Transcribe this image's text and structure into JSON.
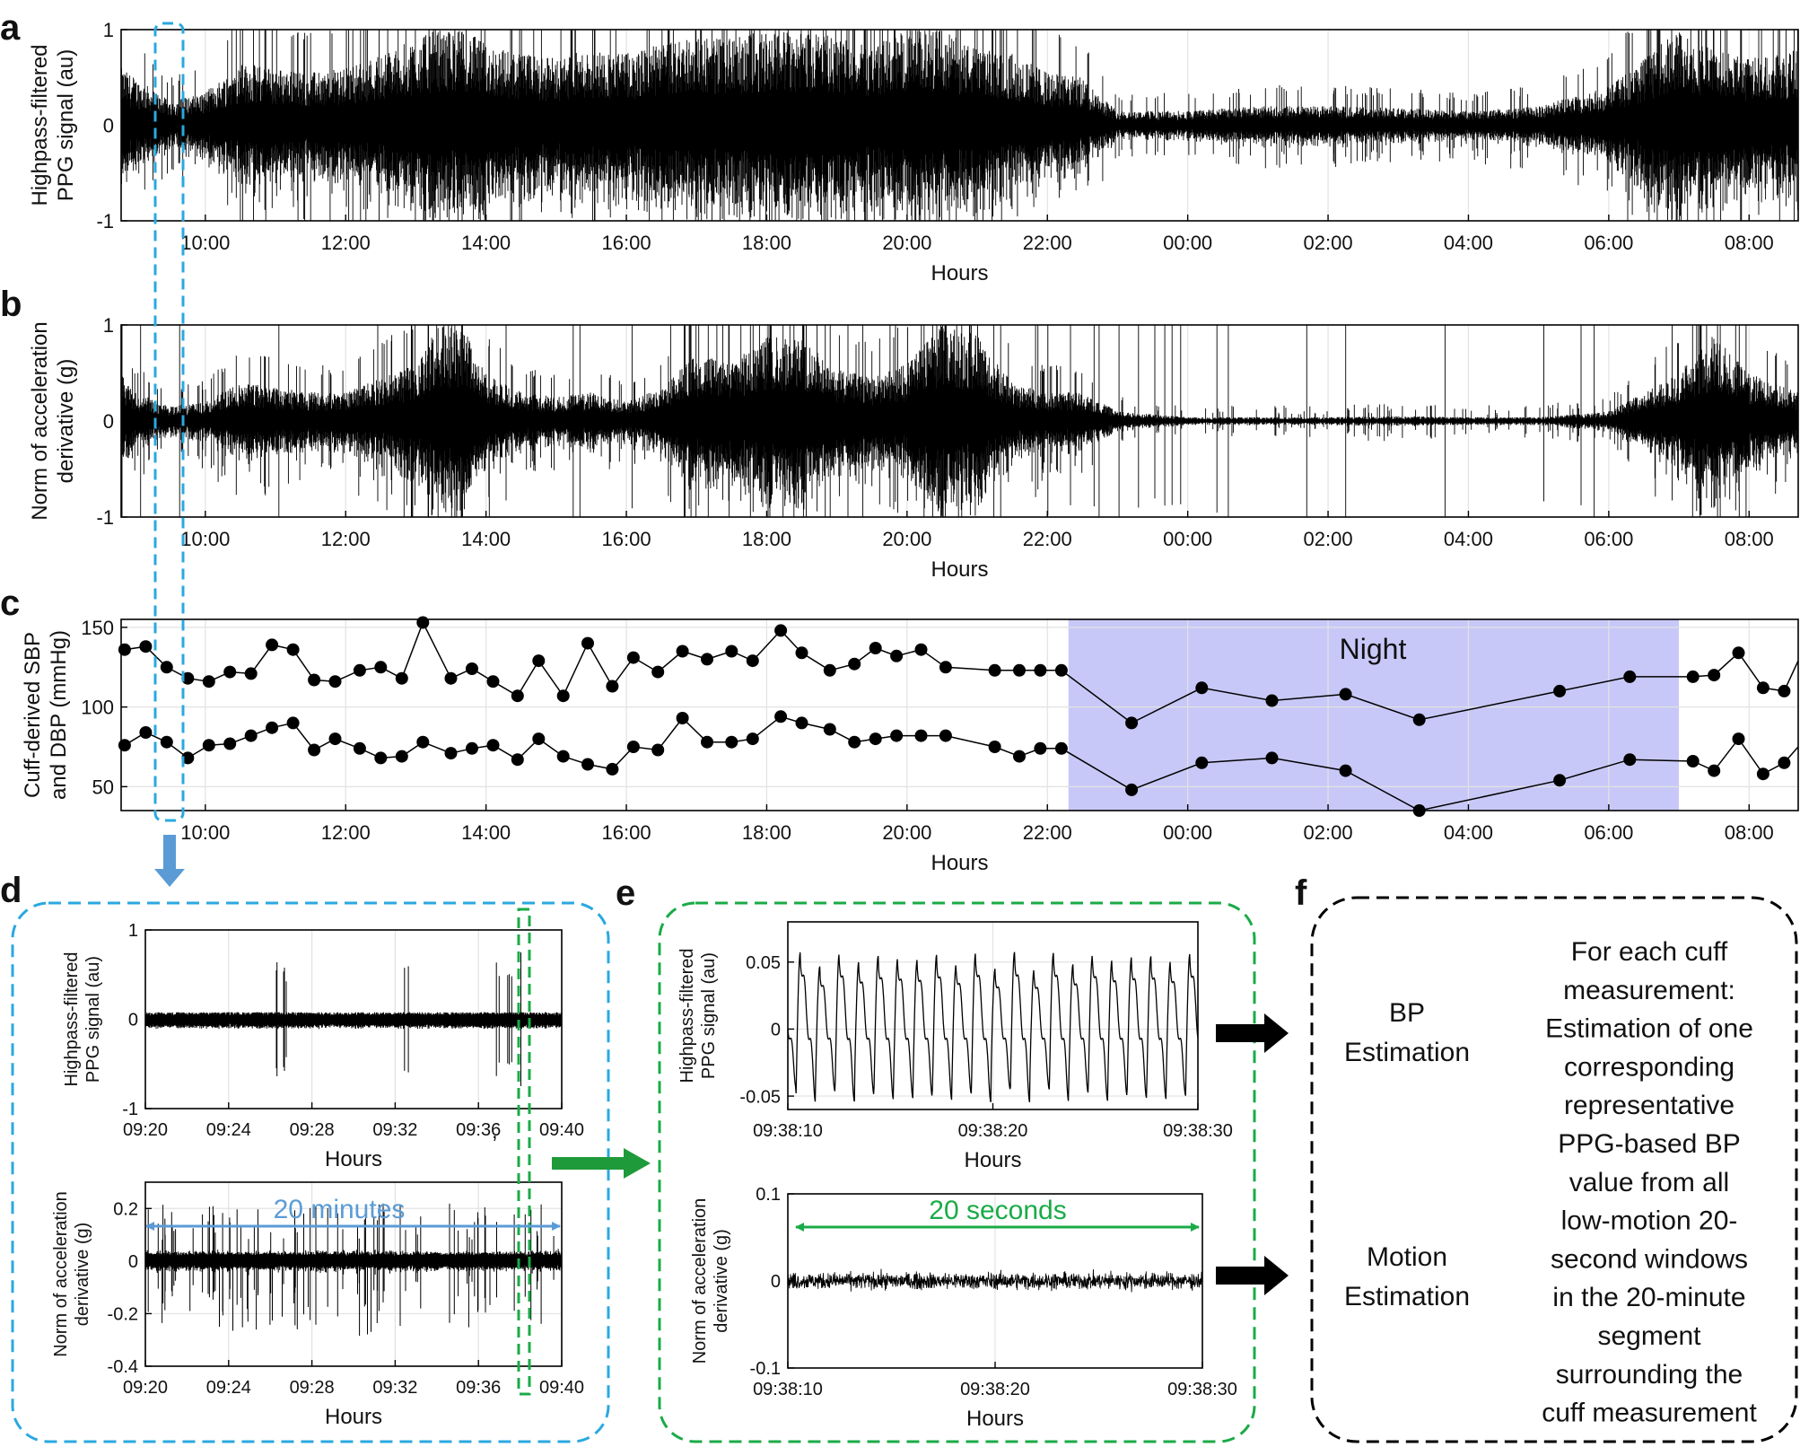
{
  "figure": {
    "panel_labels": [
      "a",
      "b",
      "c",
      "d",
      "e",
      "f"
    ],
    "night_label": "Night",
    "twenty_minutes": "20 minutes",
    "twenty_seconds": "20 seconds",
    "stray_comma": ",",
    "f_left_top": [
      "BP",
      "Estimation"
    ],
    "f_left_bottom": [
      "Motion",
      "Estimation"
    ],
    "f_right": [
      "For each cuff",
      "measurement:",
      "Estimation of one",
      "corresponding",
      "representative",
      "PPG-based BP",
      "value from all",
      "low-motion 20-",
      "second windows",
      "in the 20-minute",
      "segment",
      "surrounding the",
      "cuff measurement"
    ],
    "colors": {
      "blue_dash": "#2aa8e0",
      "green_dash": "#1aab47",
      "blue_arrow": "#5b9bd5",
      "green_arrow": "#1f9a3a",
      "night_fill": "#c8c8f8",
      "trace": "#000000"
    }
  },
  "chart_data": [
    {
      "id": "a",
      "type": "line",
      "title": "",
      "ylabel": [
        "Highpass-filtered",
        "PPG signal (au)"
      ],
      "xlabel": "Hours",
      "xlim_hours": [
        8.8,
        32.7
      ],
      "ylim": [
        -1,
        1
      ],
      "yticks": [
        -1,
        0,
        1
      ],
      "xtick_positions_hours": [
        10,
        12,
        14,
        16,
        18,
        20,
        22,
        24,
        26,
        28,
        30,
        32
      ],
      "xtick_labels": [
        "10:00",
        "12:00",
        "14:00",
        "16:00",
        "18:00",
        "20:00",
        "22:00",
        "00:00",
        "02:00",
        "04:00",
        "06:00",
        "08:00"
      ],
      "envelope_hours": [
        8.8,
        9.0,
        9.5,
        10.0,
        10.5,
        11.0,
        11.5,
        12.0,
        12.5,
        13.0,
        13.3,
        13.7,
        14.0,
        14.5,
        15.0,
        15.5,
        16.0,
        16.5,
        17.0,
        17.5,
        18.0,
        18.3,
        18.7,
        19.0,
        19.5,
        20.0,
        20.5,
        21.0,
        21.5,
        22.0,
        22.5,
        23.0,
        24.0,
        25.0,
        26.0,
        27.0,
        28.0,
        29.0,
        30.0,
        31.0,
        31.5,
        32.0,
        32.7
      ],
      "envelope_amplitude": [
        0.6,
        0.5,
        0.25,
        0.35,
        0.65,
        0.6,
        0.55,
        0.6,
        0.75,
        0.9,
        1.0,
        1.0,
        0.85,
        0.75,
        0.7,
        0.8,
        0.75,
        0.85,
        0.95,
        0.9,
        1.0,
        1.0,
        1.0,
        0.9,
        0.85,
        1.0,
        1.0,
        0.8,
        0.75,
        0.55,
        0.5,
        0.15,
        0.15,
        0.2,
        0.2,
        0.18,
        0.15,
        0.2,
        0.4,
        1.0,
        0.8,
        0.7,
        0.8
      ]
    },
    {
      "id": "b",
      "type": "line",
      "ylabel": [
        "Norm of acceleration",
        "derivative (g)"
      ],
      "xlabel": "Hours",
      "xlim_hours": [
        8.8,
        32.7
      ],
      "ylim": [
        -1,
        1
      ],
      "yticks": [
        -1,
        0,
        1
      ],
      "xtick_positions_hours": [
        10,
        12,
        14,
        16,
        18,
        20,
        22,
        24,
        26,
        28,
        30,
        32
      ],
      "xtick_labels": [
        "10:00",
        "12:00",
        "14:00",
        "16:00",
        "18:00",
        "20:00",
        "22:00",
        "00:00",
        "02:00",
        "04:00",
        "06:00",
        "08:00"
      ],
      "envelope_hours": [
        8.8,
        9.0,
        9.5,
        10.0,
        10.5,
        11.0,
        11.5,
        12.0,
        12.5,
        13.0,
        13.3,
        13.7,
        14.0,
        14.5,
        15.0,
        15.5,
        16.0,
        16.5,
        17.0,
        17.5,
        18.0,
        18.5,
        19.0,
        19.5,
        20.0,
        20.5,
        21.0,
        21.5,
        22.0,
        22.5,
        23.0,
        24.0,
        25.0,
        26.0,
        27.0,
        28.0,
        29.0,
        30.0,
        31.0,
        31.5,
        32.0,
        32.7
      ],
      "envelope_amplitude": [
        0.5,
        0.3,
        0.15,
        0.2,
        0.4,
        0.35,
        0.3,
        0.3,
        0.45,
        0.6,
        1.0,
        0.95,
        0.5,
        0.3,
        0.25,
        0.3,
        0.2,
        0.35,
        0.7,
        0.6,
        0.9,
        0.85,
        0.55,
        0.45,
        0.6,
        1.0,
        0.9,
        0.4,
        0.3,
        0.3,
        0.1,
        0.04,
        0.04,
        0.04,
        0.05,
        0.04,
        0.04,
        0.1,
        0.5,
        0.9,
        0.5,
        0.3
      ]
    },
    {
      "id": "c",
      "type": "scatter",
      "ylabel": [
        "Cuff-derived SBP",
        "and DBP (mmHg)"
      ],
      "xlabel": "Hours",
      "xlim_hours": [
        8.8,
        32.7
      ],
      "ylim": [
        35,
        155
      ],
      "yticks": [
        50,
        100,
        150
      ],
      "xtick_positions_hours": [
        10,
        12,
        14,
        16,
        18,
        20,
        22,
        24,
        26,
        28,
        30,
        32
      ],
      "xtick_labels": [
        "10:00",
        "12:00",
        "14:00",
        "16:00",
        "18:00",
        "20:00",
        "22:00",
        "00:00",
        "02:00",
        "04:00",
        "06:00",
        "08:00"
      ],
      "night_hours": [
        22.3,
        31.0
      ],
      "sbp": {
        "name": "SBP",
        "x": [
          8.85,
          9.15,
          9.45,
          9.75,
          10.05,
          10.35,
          10.65,
          10.95,
          11.25,
          11.55,
          11.85,
          12.2,
          12.5,
          12.8,
          13.1,
          13.5,
          13.8,
          14.1,
          14.45,
          14.75,
          15.1,
          15.45,
          15.8,
          16.1,
          16.45,
          16.8,
          17.15,
          17.5,
          17.8,
          18.2,
          18.5,
          18.9,
          19.25,
          19.55,
          19.85,
          20.2,
          20.55,
          21.25,
          21.6,
          21.9,
          22.2,
          23.2,
          24.2,
          25.2,
          26.25,
          27.3,
          29.3,
          30.3,
          31.2,
          31.5,
          31.85,
          32.2,
          32.5,
          32.7
        ],
        "values": [
          136,
          138,
          125,
          118,
          116,
          122,
          121,
          139,
          136,
          117,
          116,
          123,
          125,
          118,
          153,
          118,
          124,
          116,
          107,
          129,
          107,
          140,
          113,
          131,
          122,
          135,
          130,
          135,
          129,
          148,
          134,
          123,
          127,
          137,
          132,
          136,
          125,
          123,
          123,
          123,
          123,
          90,
          112,
          104,
          108,
          92,
          110,
          119,
          119,
          120,
          134,
          112,
          110,
          129
        ]
      },
      "dbp": {
        "name": "DBP",
        "x": [
          8.85,
          9.15,
          9.45,
          9.75,
          10.05,
          10.35,
          10.65,
          10.95,
          11.25,
          11.55,
          11.85,
          12.2,
          12.5,
          12.8,
          13.1,
          13.5,
          13.8,
          14.1,
          14.45,
          14.75,
          15.1,
          15.45,
          15.8,
          16.1,
          16.45,
          16.8,
          17.15,
          17.5,
          17.8,
          18.2,
          18.5,
          18.9,
          19.25,
          19.55,
          19.85,
          20.2,
          20.55,
          21.25,
          21.6,
          21.9,
          22.2,
          23.2,
          24.2,
          25.2,
          26.25,
          27.3,
          29.3,
          30.3,
          31.2,
          31.5,
          31.85,
          32.2,
          32.5,
          32.7
        ],
        "values": [
          76,
          84,
          78,
          68,
          76,
          77,
          82,
          87,
          90,
          73,
          80,
          74,
          68,
          69,
          78,
          71,
          74,
          76,
          67,
          80,
          69,
          64,
          61,
          75,
          73,
          93,
          78,
          78,
          80,
          94,
          90,
          86,
          78,
          80,
          82,
          82,
          82,
          75,
          69,
          74,
          74,
          48,
          65,
          68,
          60,
          35,
          54,
          67,
          66,
          60,
          80,
          58,
          65,
          75
        ]
      }
    },
    {
      "id": "d-top",
      "type": "line",
      "ylabel": [
        "Highpass-filtered",
        "PPG signal (au)"
      ],
      "xlabel": "Hours",
      "xlim_minutes": [
        20,
        40
      ],
      "ylim": [
        -1,
        1
      ],
      "yticks": [
        -1,
        0,
        1
      ],
      "xtick_positions_minutes": [
        20,
        24,
        28,
        32,
        36,
        40
      ],
      "xtick_labels": [
        "09:20",
        "09:24",
        "09:28",
        "09:32",
        "09:36",
        "09:40"
      ],
      "spikes_minutes": [
        [
          26.0,
          27.2,
          0.7
        ],
        [
          32.2,
          32.7,
          0.6
        ],
        [
          36.7,
          38.2,
          0.75
        ]
      ]
    },
    {
      "id": "d-bottom",
      "type": "line",
      "ylabel": [
        "Norm of acceleration",
        "derivative (g)"
      ],
      "xlabel": "Hours",
      "xlim_minutes": [
        20,
        40
      ],
      "ylim": [
        -0.4,
        0.3
      ],
      "yticks": [
        -0.4,
        -0.2,
        0,
        0.2
      ],
      "ytick_labels": [
        "-0.4",
        "-0.2",
        "0",
        "0.2"
      ],
      "xtick_positions_minutes": [
        20,
        24,
        28,
        32,
        36,
        40
      ],
      "xtick_labels": [
        "09:20",
        "09:24",
        "09:28",
        "09:32",
        "09:36",
        "09:40"
      ]
    },
    {
      "id": "e-top",
      "type": "line",
      "ylabel": [
        "Highpass-filtered",
        "PPG signal (au)"
      ],
      "xlabel": "Hours",
      "xlim_seconds": [
        10,
        30
      ],
      "ylim": [
        -0.06,
        0.08
      ],
      "yticks": [
        -0.05,
        0,
        0.05
      ],
      "ytick_labels": [
        "-0.05",
        "0",
        "0.05"
      ],
      "xtick_positions_seconds": [
        10,
        20,
        30
      ],
      "xtick_labels": [
        "09:38:10",
        "09:38:20",
        "09:38:30"
      ],
      "beat_period_s": 0.95,
      "amplitude": 0.055
    },
    {
      "id": "e-bottom",
      "type": "line",
      "ylabel": [
        "Norm of acceleration",
        "derivative (g)"
      ],
      "xlabel": "Hours",
      "xlim_seconds": [
        10,
        30
      ],
      "ylim": [
        -0.1,
        0.1
      ],
      "yticks": [
        -0.1,
        0,
        0.1
      ],
      "ytick_labels": [
        "-0.1",
        "0",
        "0.1"
      ],
      "xtick_positions_seconds": [
        10,
        20,
        30
      ],
      "xtick_labels": [
        "09:38:10",
        "09:38:20",
        "09:38:30"
      ]
    }
  ]
}
